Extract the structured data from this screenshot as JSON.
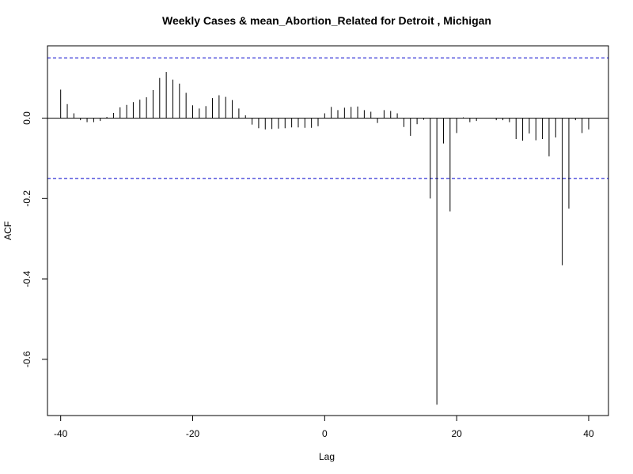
{
  "chart_data": {
    "type": "bar",
    "title": "Weekly Cases & mean_Abortion_Related for Detroit , Michigan",
    "xlabel": "Lag",
    "ylabel": "ACF",
    "xlim": [
      -42,
      43
    ],
    "ylim": [
      -0.74,
      0.18
    ],
    "x_ticks": [
      -40,
      -20,
      0,
      20,
      40
    ],
    "y_ticks": [
      -0.6,
      -0.4,
      -0.2,
      0.0
    ],
    "x_tick_labels": [
      "-40",
      "-20",
      "0",
      "20",
      "40"
    ],
    "y_tick_labels": [
      "-0.6",
      "-0.4",
      "-0.2",
      "0.0"
    ],
    "confidence_band": 0.15,
    "colors": {
      "stem": "#000000",
      "band": "#0000cc",
      "zero_line": "#000000"
    },
    "lags": [
      -40,
      -39,
      -38,
      -37,
      -36,
      -35,
      -34,
      -33,
      -32,
      -31,
      -30,
      -29,
      -28,
      -27,
      -26,
      -25,
      -24,
      -23,
      -22,
      -21,
      -20,
      -19,
      -18,
      -17,
      -16,
      -15,
      -14,
      -13,
      -12,
      -11,
      -10,
      -9,
      -8,
      -7,
      -6,
      -5,
      -4,
      -3,
      -2,
      -1,
      0,
      1,
      2,
      3,
      4,
      5,
      6,
      7,
      8,
      9,
      10,
      11,
      12,
      13,
      14,
      15,
      16,
      17,
      18,
      19,
      20,
      21,
      22,
      23,
      24,
      25,
      26,
      27,
      28,
      29,
      30,
      31,
      32,
      33,
      34,
      35,
      36,
      37,
      38,
      39,
      40
    ],
    "values": [
      0.071,
      0.035,
      0.012,
      -0.005,
      -0.01,
      -0.01,
      -0.007,
      0.003,
      0.013,
      0.027,
      0.033,
      0.04,
      0.046,
      0.052,
      0.07,
      0.1,
      0.115,
      0.096,
      0.086,
      0.063,
      0.032,
      0.024,
      0.03,
      0.05,
      0.057,
      0.053,
      0.045,
      0.024,
      0.007,
      -0.016,
      -0.025,
      -0.028,
      -0.027,
      -0.026,
      -0.025,
      -0.023,
      -0.023,
      -0.024,
      -0.024,
      -0.02,
      0.012,
      0.028,
      0.02,
      0.026,
      0.028,
      0.029,
      0.02,
      0.016,
      -0.012,
      0.02,
      0.018,
      0.012,
      -0.022,
      -0.044,
      -0.015,
      -0.004,
      -0.2,
      -0.713,
      -0.063,
      -0.232,
      -0.037,
      0.002,
      -0.01,
      -0.007,
      0.0,
      0.0,
      -0.005,
      -0.005,
      -0.01,
      -0.052,
      -0.056,
      -0.038,
      -0.055,
      -0.052,
      -0.095,
      -0.048,
      -0.366,
      -0.225,
      -0.005,
      -0.037,
      -0.028
    ]
  }
}
